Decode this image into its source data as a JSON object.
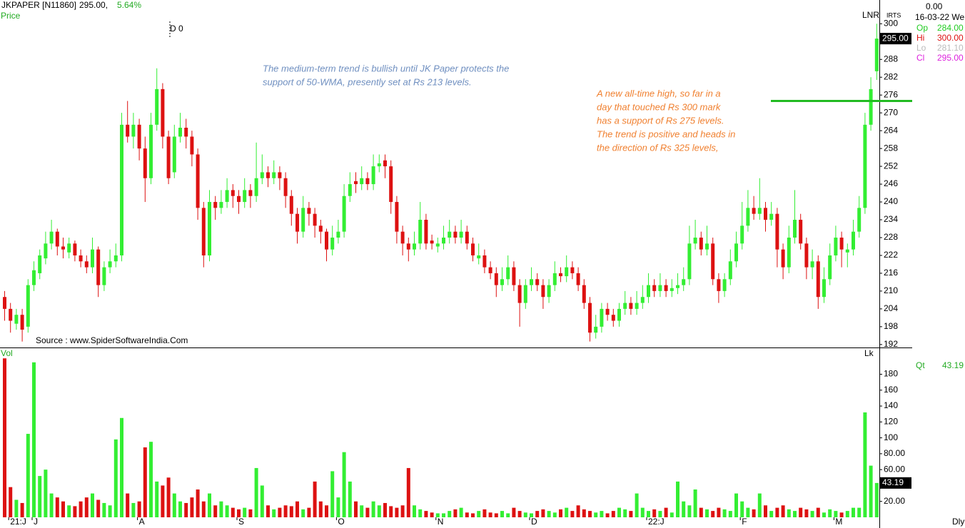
{
  "chart_data": {
    "type": "candlestick",
    "header": {
      "symbol": "JKPAPER [N11860]",
      "price": "295.00,",
      "change": "5.64%"
    },
    "price_label": "Price",
    "marker_label": "D 0",
    "volume_label": "Vol",
    "lk_label": "Lk",
    "lnr_label": "LNR",
    "irts_label": "IRTS",
    "period_label": "Dly",
    "source": "Source : www.SpiderSoftwareIndia.Com",
    "annotations": {
      "blue": [
        "The medium-term trend is bullish until JK Paper protects the",
        "support of 50-WMA, presently set at Rs 213 levels."
      ],
      "orange": [
        "A new all-time high, so far in a",
        "day that touched Rs 300 mark",
        "has a support of Rs 275 levels.",
        "The trend is positive and heads in",
        "the direction of Rs 325 levels,"
      ]
    },
    "info": {
      "top": "0.00",
      "date": "16-03-22 We",
      "rows": [
        {
          "label": "Op",
          "value": "284.00",
          "color": "#22cc22"
        },
        {
          "label": "Hi",
          "value": "300.00",
          "color": "#dd1111"
        },
        {
          "label": "Lo",
          "value": "281.10",
          "color": "#bbbbbb"
        },
        {
          "label": "Cl",
          "value": "295.00",
          "color": "#dd22dd"
        }
      ],
      "qt_label": "Qt",
      "qt_value": "43.19"
    },
    "price_tag": "295.00",
    "volume_tag": "43.19",
    "support_line": 274,
    "support_color": "#22bb22",
    "up_color": "#33ee33",
    "down_color": "#dd1111",
    "ylim": [
      191,
      308
    ],
    "yticks": [
      192,
      198,
      204,
      210,
      216,
      222,
      228,
      234,
      240,
      246,
      252,
      258,
      264,
      270,
      276,
      282,
      288,
      300
    ],
    "vol_ylim": [
      0,
      211
    ],
    "vol_yticks": [
      {
        "value": 20,
        "label": "20.00"
      },
      {
        "value": 60,
        "label": "60.00"
      },
      {
        "value": 80,
        "label": "80.00"
      },
      100,
      120,
      140,
      160,
      180
    ],
    "categories": [
      null,
      "21:J",
      null,
      null,
      null,
      "J",
      null,
      null,
      null,
      null,
      null,
      null,
      null,
      null,
      null,
      null,
      null,
      null,
      null,
      null,
      null,
      null,
      null,
      "A",
      null,
      null,
      null,
      null,
      null,
      null,
      null,
      null,
      null,
      null,
      null,
      null,
      null,
      null,
      null,
      null,
      "S",
      null,
      null,
      null,
      null,
      null,
      null,
      null,
      null,
      null,
      null,
      null,
      null,
      null,
      null,
      null,
      null,
      "O",
      null,
      null,
      null,
      null,
      null,
      null,
      null,
      null,
      null,
      null,
      null,
      null,
      null,
      null,
      null,
      null,
      "N",
      null,
      null,
      null,
      null,
      null,
      null,
      null,
      null,
      null,
      null,
      null,
      null,
      null,
      null,
      null,
      "D",
      null,
      null,
      null,
      null,
      null,
      null,
      null,
      null,
      null,
      null,
      null,
      null,
      null,
      null,
      null,
      null,
      null,
      null,
      null,
      "22:J",
      null,
      null,
      null,
      null,
      null,
      null,
      null,
      null,
      null,
      null,
      null,
      null,
      null,
      null,
      null,
      "F",
      null,
      null,
      null,
      null,
      null,
      null,
      null,
      null,
      null,
      null,
      null,
      null,
      null,
      null,
      null,
      "M",
      null,
      null,
      null,
      null,
      null,
      null,
      null
    ],
    "candles": [
      [
        208,
        210,
        200,
        204
      ],
      [
        204,
        206,
        196,
        200
      ],
      [
        199,
        204,
        197,
        202
      ],
      [
        202,
        204,
        193,
        197
      ],
      [
        198,
        214,
        196,
        212
      ],
      [
        212,
        220,
        210,
        217
      ],
      [
        216,
        224,
        214,
        222
      ],
      [
        221,
        230,
        219,
        226
      ],
      [
        226,
        234,
        224,
        230
      ],
      [
        230,
        231,
        222,
        225
      ],
      [
        225,
        228,
        221,
        224
      ],
      [
        223,
        228,
        221,
        226
      ],
      [
        226,
        227,
        220,
        222
      ],
      [
        222,
        224,
        218,
        220
      ],
      [
        220,
        222,
        216,
        218
      ],
      [
        218,
        228,
        216,
        224
      ],
      [
        224,
        225,
        208,
        212
      ],
      [
        212,
        220,
        210,
        218
      ],
      [
        218,
        224,
        216,
        220
      ],
      [
        220,
        226,
        218,
        222
      ],
      [
        222,
        270,
        220,
        266
      ],
      [
        266,
        274,
        260,
        262
      ],
      [
        262,
        270,
        258,
        266
      ],
      [
        266,
        268,
        254,
        258
      ],
      [
        258,
        262,
        240,
        248
      ],
      [
        248,
        270,
        246,
        266
      ],
      [
        266,
        285,
        264,
        278
      ],
      [
        278,
        280,
        258,
        262
      ],
      [
        262,
        264,
        246,
        248
      ],
      [
        250,
        266,
        248,
        262
      ],
      [
        262,
        270,
        260,
        265
      ],
      [
        265,
        268,
        258,
        262
      ],
      [
        262,
        264,
        252,
        256
      ],
      [
        256,
        258,
        234,
        238
      ],
      [
        238,
        240,
        218,
        222
      ],
      [
        222,
        244,
        220,
        240
      ],
      [
        240,
        242,
        234,
        238
      ],
      [
        238,
        244,
        236,
        240
      ],
      [
        240,
        248,
        238,
        244
      ],
      [
        244,
        246,
        238,
        242
      ],
      [
        242,
        244,
        236,
        240
      ],
      [
        240,
        248,
        238,
        244
      ],
      [
        244,
        246,
        238,
        242
      ],
      [
        242,
        260,
        240,
        248
      ],
      [
        248,
        256,
        246,
        250
      ],
      [
        250,
        252,
        245,
        248
      ],
      [
        248,
        254,
        246,
        250
      ],
      [
        250,
        252,
        244,
        248
      ],
      [
        248,
        250,
        238,
        242
      ],
      [
        242,
        244,
        232,
        236
      ],
      [
        236,
        238,
        226,
        230
      ],
      [
        230,
        242,
        228,
        238
      ],
      [
        238,
        240,
        232,
        236
      ],
      [
        236,
        238,
        228,
        232
      ],
      [
        232,
        234,
        226,
        230
      ],
      [
        230,
        231,
        220,
        224
      ],
      [
        224,
        232,
        222,
        228
      ],
      [
        228,
        234,
        226,
        230
      ],
      [
        230,
        246,
        228,
        242
      ],
      [
        242,
        250,
        240,
        246
      ],
      [
        247,
        250,
        243,
        246
      ],
      [
        246,
        252,
        244,
        248
      ],
      [
        248,
        250,
        244,
        246
      ],
      [
        246,
        256,
        244,
        252
      ],
      [
        252,
        256,
        250,
        253
      ],
      [
        254,
        256,
        248,
        252
      ],
      [
        252,
        254,
        236,
        240
      ],
      [
        240,
        242,
        226,
        230
      ],
      [
        230,
        232,
        222,
        226
      ],
      [
        226,
        228,
        220,
        224
      ],
      [
        224,
        230,
        222,
        226
      ],
      [
        226,
        240,
        224,
        234
      ],
      [
        234,
        236,
        224,
        226
      ],
      [
        227,
        229,
        224,
        226
      ],
      [
        225,
        228,
        223,
        226
      ],
      [
        226,
        232,
        224,
        228
      ],
      [
        228,
        234,
        226,
        230
      ],
      [
        230,
        232,
        226,
        228
      ],
      [
        228,
        234,
        226,
        230
      ],
      [
        230,
        232,
        224,
        226
      ],
      [
        226,
        228,
        220,
        222
      ],
      [
        221,
        226,
        219,
        222
      ],
      [
        222,
        224,
        216,
        218
      ],
      [
        218,
        220,
        214,
        216
      ],
      [
        216,
        218,
        208,
        212
      ],
      [
        212,
        218,
        210,
        214
      ],
      [
        214,
        222,
        212,
        218
      ],
      [
        218,
        220,
        210,
        212
      ],
      [
        212,
        214,
        198,
        206
      ],
      [
        206,
        214,
        204,
        212
      ],
      [
        212,
        218,
        210,
        214
      ],
      [
        214,
        216,
        210,
        212
      ],
      [
        212,
        214,
        204,
        208
      ],
      [
        208,
        214,
        206,
        212
      ],
      [
        212,
        220,
        210,
        216
      ],
      [
        216,
        218,
        213,
        215
      ],
      [
        215,
        222,
        213,
        218
      ],
      [
        218,
        220,
        214,
        216
      ],
      [
        216,
        218,
        210,
        212
      ],
      [
        212,
        214,
        204,
        206
      ],
      [
        206,
        208,
        193,
        196
      ],
      [
        196,
        202,
        194,
        198
      ],
      [
        198,
        206,
        196,
        204
      ],
      [
        204,
        206,
        200,
        202
      ],
      [
        202,
        204,
        198,
        200
      ],
      [
        200,
        206,
        198,
        204
      ],
      [
        204,
        210,
        202,
        206
      ],
      [
        206,
        208,
        202,
        204
      ],
      [
        204,
        210,
        202,
        206
      ],
      [
        206,
        212,
        204,
        208
      ],
      [
        208,
        216,
        206,
        212
      ],
      [
        212,
        214,
        208,
        210
      ],
      [
        210,
        216,
        208,
        212
      ],
      [
        212,
        214,
        208,
        210
      ],
      [
        210,
        214,
        208,
        211
      ],
      [
        211,
        216,
        209,
        212
      ],
      [
        212,
        218,
        210,
        214
      ],
      [
        214,
        232,
        212,
        226
      ],
      [
        226,
        234,
        224,
        228
      ],
      [
        228,
        230,
        222,
        224
      ],
      [
        224,
        232,
        222,
        226
      ],
      [
        226,
        228,
        212,
        214
      ],
      [
        214,
        216,
        206,
        210
      ],
      [
        210,
        216,
        208,
        214
      ],
      [
        214,
        224,
        212,
        220
      ],
      [
        220,
        230,
        218,
        226
      ],
      [
        226,
        240,
        224,
        232
      ],
      [
        232,
        244,
        230,
        238
      ],
      [
        238,
        242,
        234,
        236
      ],
      [
        236,
        248,
        234,
        238
      ],
      [
        238,
        240,
        230,
        234
      ],
      [
        234,
        240,
        232,
        236
      ],
      [
        236,
        238,
        218,
        224
      ],
      [
        224,
        226,
        214,
        218
      ],
      [
        218,
        232,
        216,
        228
      ],
      [
        228,
        244,
        226,
        234
      ],
      [
        234,
        236,
        224,
        226
      ],
      [
        226,
        228,
        214,
        218
      ],
      [
        218,
        224,
        214,
        220
      ],
      [
        220,
        222,
        204,
        208
      ],
      [
        208,
        218,
        206,
        214
      ],
      [
        214,
        226,
        212,
        222
      ],
      [
        222,
        232,
        220,
        228
      ],
      [
        228,
        230,
        218,
        224
      ],
      [
        223,
        226,
        218,
        224
      ],
      [
        224,
        234,
        222,
        230
      ],
      [
        230,
        242,
        228,
        238
      ],
      [
        238,
        270,
        236,
        266
      ],
      [
        266,
        282,
        264,
        278
      ],
      [
        284,
        300,
        281.1,
        295
      ]
    ],
    "volumes": [
      200,
      38,
      22,
      18,
      105,
      195,
      52,
      60,
      30,
      25,
      20,
      15,
      14,
      20,
      25,
      30,
      22,
      18,
      15,
      98,
      125,
      30,
      18,
      20,
      88,
      95,
      45,
      40,
      50,
      30,
      20,
      18,
      25,
      35,
      20,
      30,
      15,
      20,
      15,
      12,
      10,
      12,
      10,
      62,
      40,
      15,
      10,
      12,
      15,
      14,
      20,
      10,
      12,
      45,
      20,
      15,
      58,
      25,
      82,
      45,
      20,
      15,
      12,
      20,
      15,
      18,
      14,
      12,
      15,
      62,
      15,
      10,
      8,
      6,
      5,
      5,
      8,
      10,
      12,
      6,
      5,
      8,
      10,
      6,
      5,
      8,
      5,
      12,
      8,
      6,
      5,
      8,
      10,
      8,
      6,
      10,
      12,
      8,
      15,
      10,
      8,
      6,
      8,
      5,
      8,
      12,
      10,
      8,
      30,
      12,
      8,
      10,
      8,
      12,
      6,
      45,
      20,
      15,
      35,
      12,
      10,
      8,
      12,
      10,
      8,
      30,
      20,
      12,
      10,
      30,
      15,
      8,
      12,
      15,
      10,
      8,
      12,
      10,
      8,
      12,
      6,
      10,
      8,
      6,
      8,
      12,
      12,
      132,
      65,
      43.19
    ]
  }
}
